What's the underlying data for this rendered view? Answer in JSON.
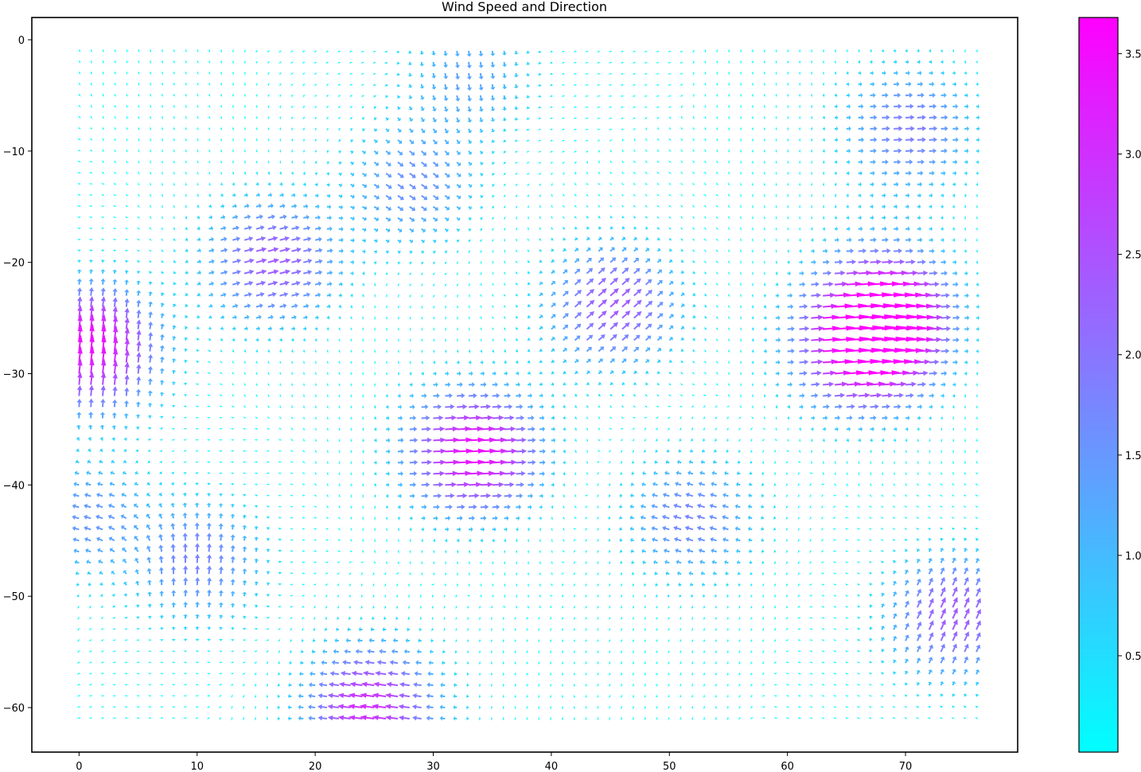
{
  "chart_data": {
    "type": "quiver",
    "title": "Wind Speed and Direction",
    "xlim": [
      -4,
      79.5
    ],
    "ylim": [
      -64,
      2
    ],
    "x_ticks": [
      0,
      10,
      20,
      30,
      40,
      50,
      60,
      70
    ],
    "y_ticks": [
      0,
      -10,
      -20,
      -30,
      -40,
      -50,
      -60
    ],
    "grid": {
      "x_start": 0,
      "x_end": 76,
      "x_step": 1,
      "y_start": -1,
      "y_end": -61,
      "y_step": -1
    },
    "colormap": "cool",
    "color_range": [
      0.02,
      3.68
    ],
    "colorbar_ticks": [
      0.5,
      1.0,
      1.5,
      2.0,
      2.5,
      3.0,
      3.5
    ],
    "colors": {
      "low": "#00ffff",
      "high": "#ff00ff"
    },
    "legend": "colorbar at right",
    "wind_features": [
      {
        "name": "jet-upper-left",
        "x": 16,
        "y": -20,
        "u": 2.3,
        "v": 0.6
      },
      {
        "name": "jet-left-edge",
        "x": 1,
        "y": -28,
        "u": 0.4,
        "v": 3.5
      },
      {
        "name": "jet-upper-right",
        "x": 68,
        "y": -24,
        "u": 3.0,
        "v": 0.2
      },
      {
        "name": "jet-right-center",
        "x": 66,
        "y": -28,
        "u": 3.2,
        "v": 0.3
      },
      {
        "name": "jet-top-right",
        "x": 70,
        "y": -8,
        "u": 1.9,
        "v": 0.1
      },
      {
        "name": "jet-mid-center",
        "x": 33,
        "y": -37,
        "u": 3.5,
        "v": 0.2
      },
      {
        "name": "jet-mid-right",
        "x": 45,
        "y": -24,
        "u": 1.8,
        "v": 1.6
      },
      {
        "name": "jet-bottom",
        "x": 25,
        "y": -60,
        "u": -3.0,
        "v": 0.4
      },
      {
        "name": "jet-lower-left",
        "x": 10,
        "y": -47,
        "u": 0.2,
        "v": 1.8
      },
      {
        "name": "jet-lower-right",
        "x": 74,
        "y": -52,
        "u": 1.0,
        "v": 2.2
      },
      {
        "name": "flow-top-center",
        "x": 33,
        "y": -3,
        "u": 0.2,
        "v": -1.3
      },
      {
        "name": "flow-left-middle",
        "x": 1,
        "y": -43,
        "u": -1.5,
        "v": 0.3
      },
      {
        "name": "flow-center-lower",
        "x": 52,
        "y": -43,
        "u": -1.7,
        "v": 0.5
      },
      {
        "name": "flow-center-upper",
        "x": 28,
        "y": -13,
        "u": 1.3,
        "v": -0.9
      }
    ]
  }
}
